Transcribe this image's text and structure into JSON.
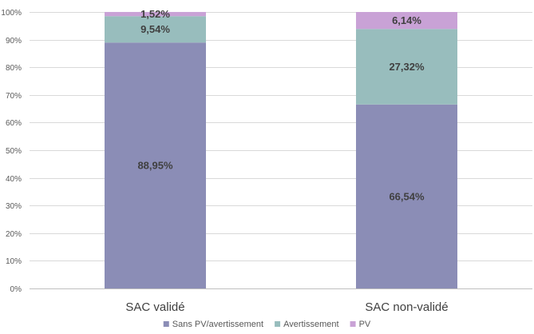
{
  "chart_data": {
    "type": "bar",
    "stacked": true,
    "percent_axis": true,
    "categories": [
      "SAC validé",
      "SAC non-validé"
    ],
    "series": [
      {
        "name": "Sans PV/avertissement",
        "values": [
          88.95,
          66.54
        ],
        "labels": [
          "88,95%",
          "66,54%"
        ],
        "color": "#8B8DB6"
      },
      {
        "name": "Avertissement",
        "values": [
          9.54,
          27.32
        ],
        "labels": [
          "9,54%",
          "27,32%"
        ],
        "color": "#98BDBD"
      },
      {
        "name": "PV",
        "values": [
          1.52,
          6.14
        ],
        "labels": [
          "1,52%",
          "6,14%"
        ],
        "color": "#C9A2D6"
      }
    ],
    "y_ticks": [
      "0%",
      "10%",
      "20%",
      "30%",
      "40%",
      "50%",
      "60%",
      "70%",
      "80%",
      "90%",
      "100%"
    ],
    "ylim": [
      0,
      100
    ],
    "grid": true,
    "legend_position": "bottom",
    "title": "",
    "xlabel": "",
    "ylabel": ""
  }
}
